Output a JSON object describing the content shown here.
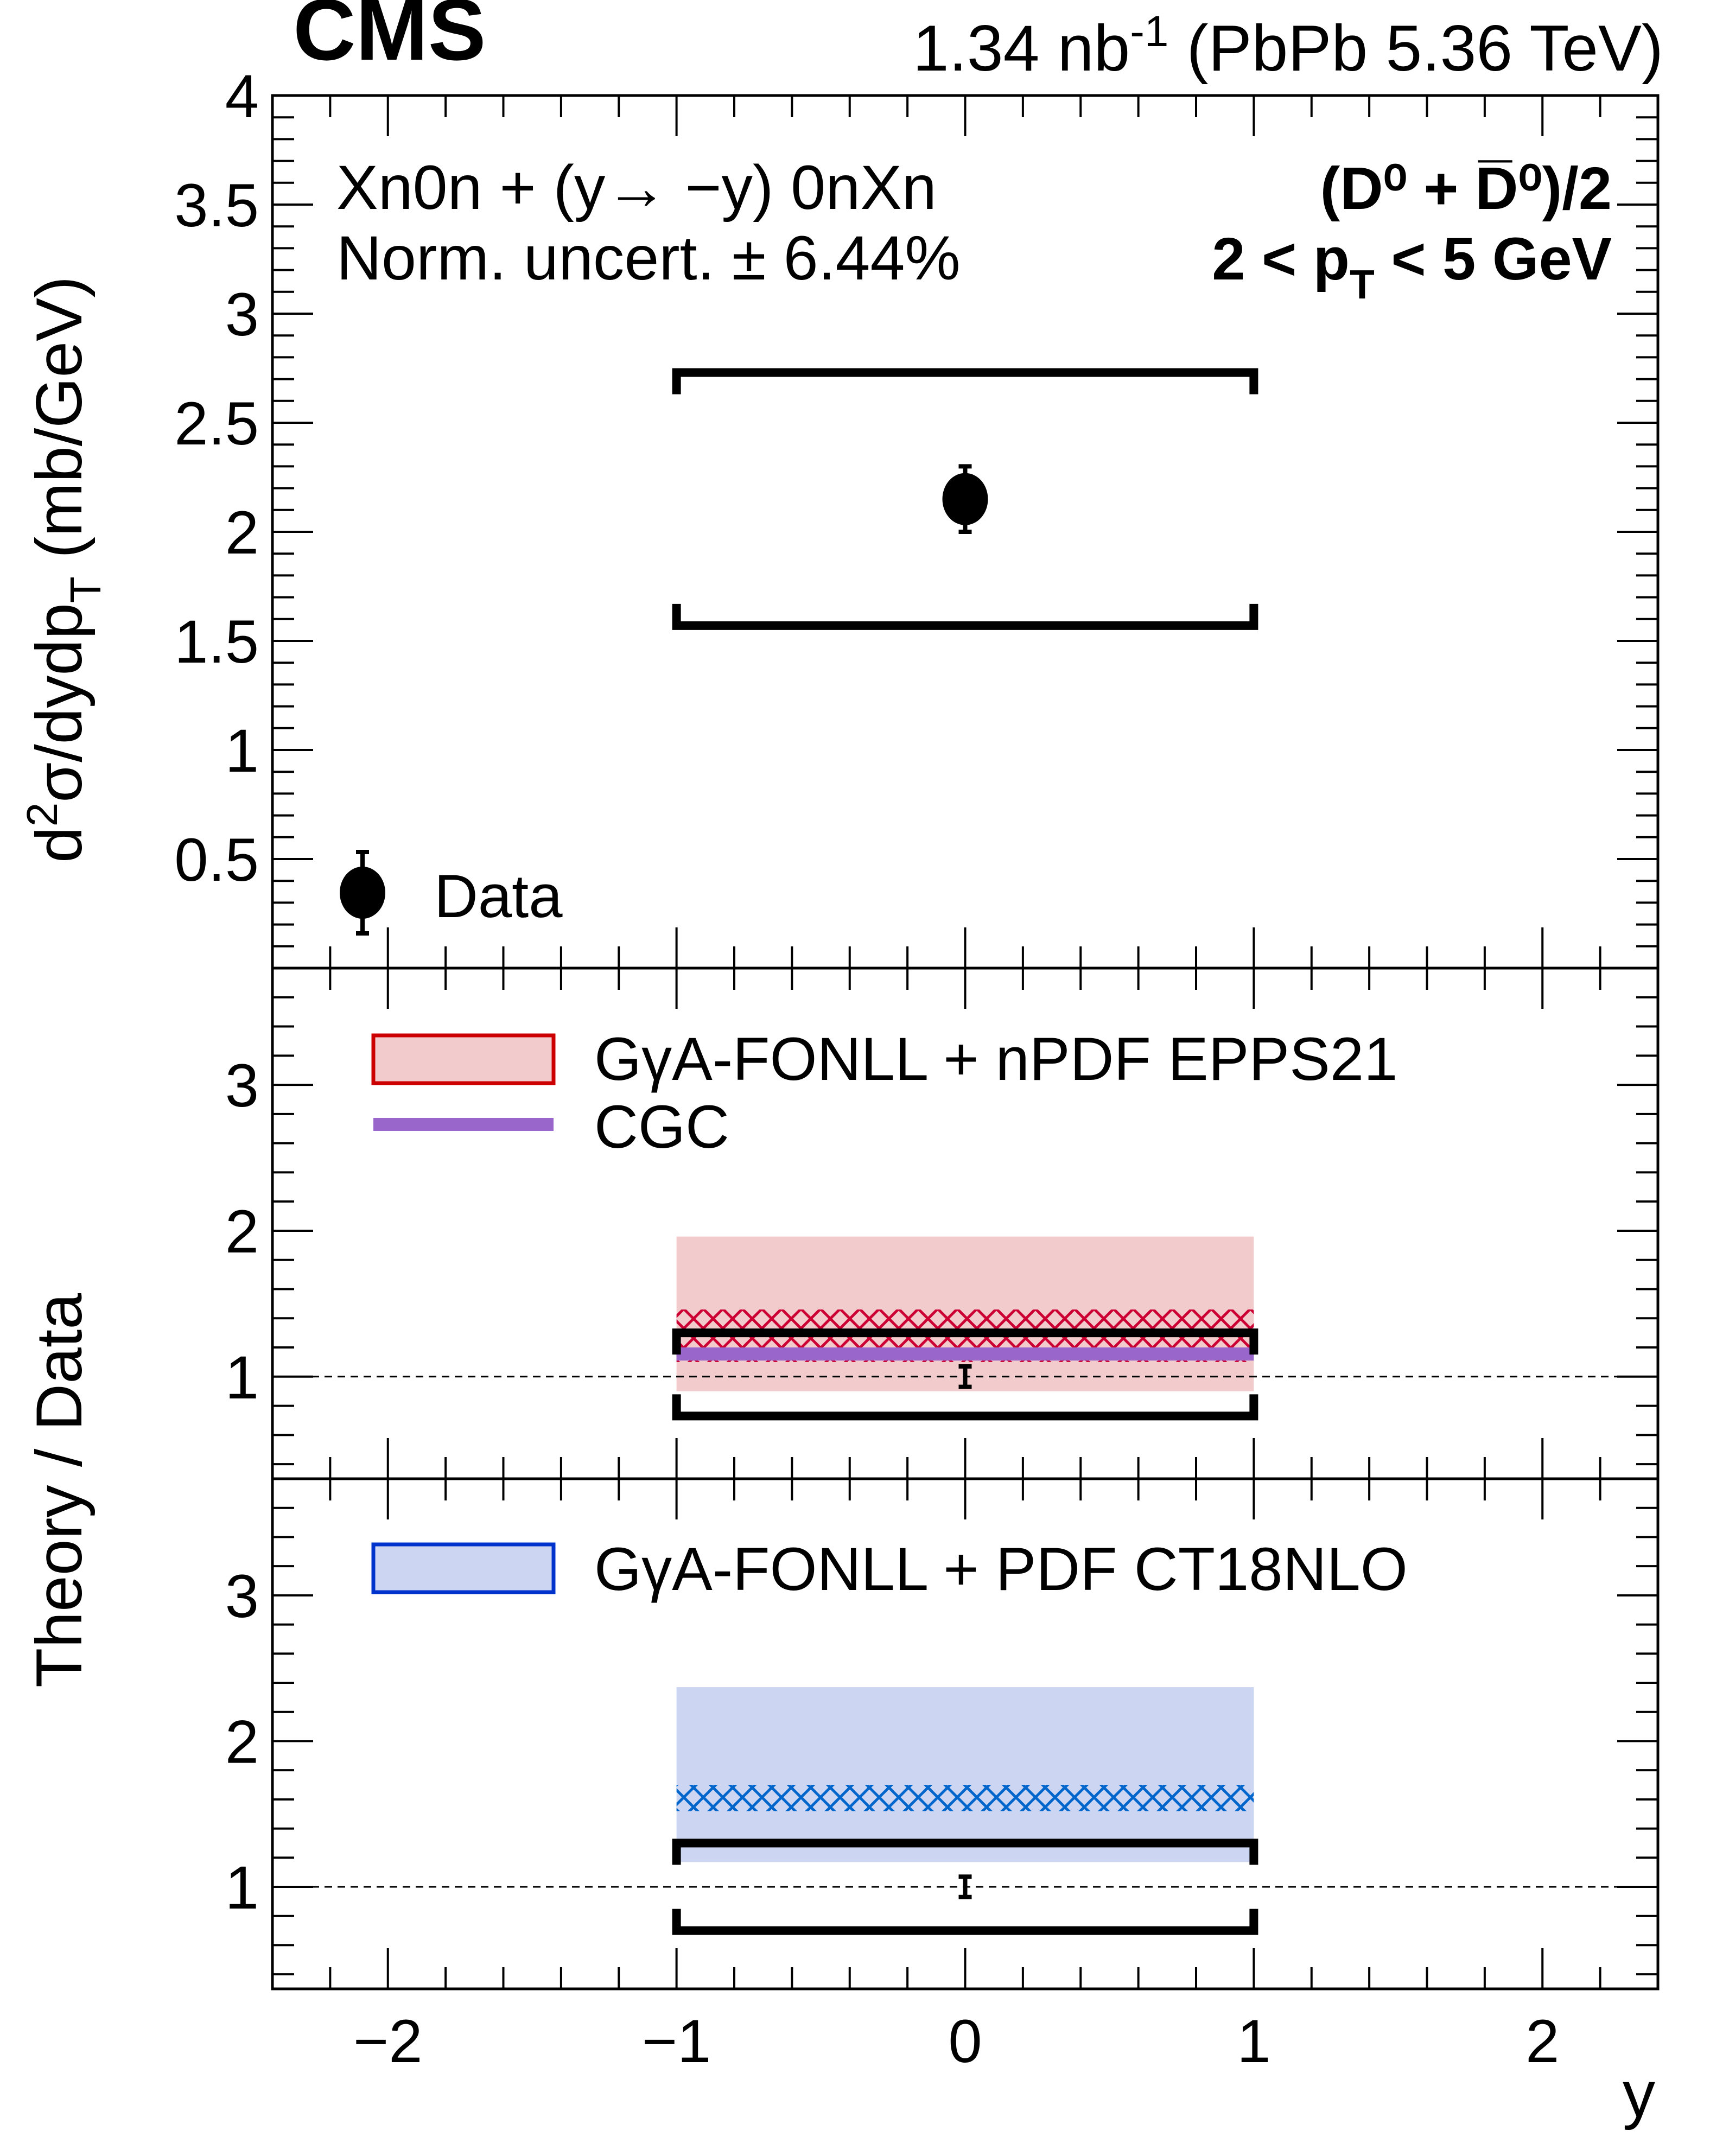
{
  "header": {
    "experiment": "CMS",
    "lumi": "1.34 nb",
    "lumi_exp": "-1",
    "system": "(PbPb 5.36 TeV)"
  },
  "annotations": {
    "selection": "Xn0n + (y→ −y) 0nXn",
    "norm": "Norm. uncert. ± 6.44%",
    "particle": "(D⁰ + D̅⁰)/2",
    "pt_range_a": "2 < p",
    "pt_sub": "T",
    "pt_range_b": " < 5 GeV"
  },
  "chart_data": [
    {
      "type": "scatter",
      "title": "",
      "xlabel": "y",
      "ylabel": "d²σ/dydp_T (mb/GeV)",
      "ylabel_parts": {
        "a": "d",
        "sup": "2",
        "b": "σ/dydp",
        "sub": "T",
        "c": " (mb/GeV)"
      },
      "xlim": [
        -2.4,
        2.4
      ],
      "ylim": [
        0,
        4
      ],
      "yticks": [
        "0.5",
        "1",
        "1.5",
        "2",
        "2.5",
        "3",
        "3.5",
        "4"
      ],
      "legend": [
        {
          "label": "Data",
          "placement": "bottom-left"
        }
      ],
      "series": [
        {
          "name": "Data",
          "x": [
            0
          ],
          "xerr": [
            1
          ],
          "y": [
            2.15
          ],
          "stat_err": [
            [
              2.0,
              2.3
            ]
          ],
          "syst": [
            [
              1.57,
              2.73
            ]
          ]
        }
      ]
    },
    {
      "type": "area",
      "ylabel": "Theory / Data",
      "xlim": [
        -2.4,
        2.4
      ],
      "ylim": [
        0.3,
        3.8
      ],
      "yticks": [
        "1",
        "2",
        "3"
      ],
      "reference_line": 1,
      "legend": [
        {
          "label": "GγA-FONLL + nPDF EPPS21",
          "color": "#cc0000",
          "fill": "#f2cccc"
        },
        {
          "label": "CGC",
          "color": "#9966cc"
        }
      ],
      "series": [
        {
          "name": "GγA-FONLL + nPDF EPPS21",
          "x": [
            -1,
            1
          ],
          "band": [
            0.9,
            1.96
          ],
          "hatched": [
            1.1,
            1.46
          ]
        },
        {
          "name": "CGC",
          "x": [
            -1,
            1
          ],
          "band": [
            1.11,
            1.2
          ]
        },
        {
          "name": "Data",
          "x": [
            0
          ],
          "y": [
            1.0
          ],
          "stat_err": [
            [
              0.93,
              1.07
            ]
          ],
          "syst": [
            [
              0.73,
              1.3
            ]
          ]
        }
      ]
    },
    {
      "type": "area",
      "xlabel": "y",
      "xlim": [
        -2.4,
        2.4
      ],
      "ylim": [
        0.3,
        3.8
      ],
      "xticks": [
        "−2",
        "−1",
        "0",
        "1",
        "2"
      ],
      "yticks": [
        "1",
        "2",
        "3"
      ],
      "reference_line": 1,
      "legend": [
        {
          "label": "GγA-FONLL + PDF CT18NLO",
          "color": "#0033cc",
          "fill": "#ccd6f2"
        }
      ],
      "series": [
        {
          "name": "GγA-FONLL + PDF CT18NLO",
          "x": [
            -1,
            1
          ],
          "band": [
            1.17,
            2.37
          ],
          "hatched": [
            1.52,
            1.7
          ]
        },
        {
          "name": "Data",
          "x": [
            0
          ],
          "y": [
            1.0
          ],
          "stat_err": [
            [
              0.93,
              1.07
            ]
          ],
          "syst": [
            [
              0.7,
              1.3
            ]
          ]
        }
      ]
    }
  ],
  "colors": {
    "red_fill": "#f2cccc",
    "red_line": "#cc0000",
    "red_hatch": "#cc0033",
    "purple": "#9966cc",
    "blue_fill": "#ccd6f2",
    "blue_line": "#0033cc",
    "blue_hatch": "#0066cc"
  }
}
